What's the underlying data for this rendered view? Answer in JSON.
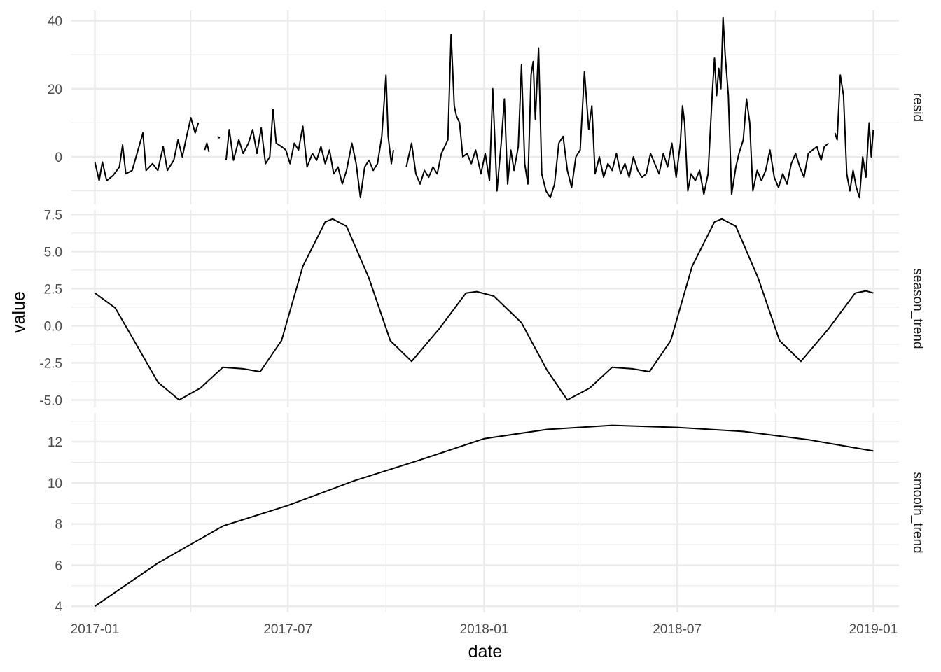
{
  "chart_data": {
    "type": "line",
    "title": "",
    "xlabel": "date",
    "ylabel": "value",
    "grid": true,
    "x_ticks": [
      "2017-01",
      "2017-07",
      "2018-01",
      "2018-07",
      "2019-01"
    ],
    "x_minor_ticks": [
      "2017-04",
      "2017-10",
      "2018-04",
      "2018-10"
    ],
    "xlim": [
      "2016-12-10",
      "2019-01-25"
    ],
    "line_color": "#000000",
    "gridline_color": "#ebebeb",
    "panels": [
      {
        "strip": "resid",
        "ylim": [
          -14,
          43
        ],
        "y_ticks": [
          0,
          20,
          40
        ],
        "y_tick_labels": [
          "0",
          "20",
          "40"
        ],
        "y_minor_ticks": [
          -10,
          10,
          30
        ],
        "points": [
          [
            "2017-01-01",
            -1.5
          ],
          [
            "2017-01-05",
            -7
          ],
          [
            "2017-01-08",
            -1.5
          ],
          [
            "2017-01-12",
            -7
          ],
          [
            "2017-01-18",
            -5.5
          ],
          [
            "2017-01-24",
            -3
          ],
          [
            "2017-01-27",
            3.5
          ],
          [
            "2017-01-30",
            -5
          ],
          [
            "2017-02-05",
            -4
          ],
          [
            "2017-02-10",
            1.5
          ],
          [
            "2017-02-15",
            7
          ],
          [
            "2017-02-18",
            -4
          ],
          [
            "2017-02-24",
            -2
          ],
          [
            "2017-03-01",
            -4
          ],
          [
            "2017-03-06",
            3
          ],
          [
            "2017-03-10",
            -4
          ],
          [
            "2017-03-16",
            -1
          ],
          [
            "2017-03-20",
            5
          ],
          [
            "2017-03-24",
            0
          ],
          [
            "2017-03-28",
            6
          ],
          [
            "2017-04-01",
            11.5
          ],
          [
            "2017-04-05",
            7
          ],
          [
            "2017-04-08",
            10
          ],
          null,
          [
            "2017-04-14",
            2
          ],
          [
            "2017-04-16",
            4
          ],
          [
            "2017-04-18",
            1.5
          ],
          null,
          [
            "2017-04-26",
            6
          ],
          [
            "2017-04-28",
            5.5
          ],
          null,
          [
            "2017-05-04",
            -1
          ],
          [
            "2017-05-07",
            8
          ],
          [
            "2017-05-11",
            -1
          ],
          [
            "2017-05-16",
            5
          ],
          [
            "2017-05-20",
            1
          ],
          [
            "2017-05-25",
            4
          ],
          [
            "2017-05-29",
            8
          ],
          [
            "2017-06-02",
            1
          ],
          [
            "2017-06-06",
            8.5
          ],
          [
            "2017-06-10",
            -2
          ],
          [
            "2017-06-14",
            0
          ],
          [
            "2017-06-17",
            14
          ],
          [
            "2017-06-20",
            4
          ],
          [
            "2017-06-25",
            3
          ],
          [
            "2017-06-29",
            2
          ],
          [
            "2017-07-03",
            -2
          ],
          [
            "2017-07-07",
            4
          ],
          [
            "2017-07-11",
            2
          ],
          [
            "2017-07-15",
            9
          ],
          [
            "2017-07-19",
            -3
          ],
          [
            "2017-07-24",
            1
          ],
          [
            "2017-07-28",
            -1
          ],
          [
            "2017-08-01",
            3
          ],
          [
            "2017-08-05",
            -2
          ],
          [
            "2017-08-09",
            2
          ],
          [
            "2017-08-13",
            -5
          ],
          [
            "2017-08-17",
            -3
          ],
          [
            "2017-08-21",
            -8
          ],
          [
            "2017-08-25",
            -4
          ],
          [
            "2017-08-30",
            4
          ],
          [
            "2017-09-03",
            -2
          ],
          [
            "2017-09-07",
            -12
          ],
          [
            "2017-09-11",
            -3
          ],
          [
            "2017-09-15",
            -1
          ],
          [
            "2017-09-19",
            -4
          ],
          [
            "2017-09-23",
            -2
          ],
          [
            "2017-09-27",
            6
          ],
          [
            "2017-10-01",
            24
          ],
          [
            "2017-10-03",
            6
          ],
          [
            "2017-10-06",
            -2
          ],
          [
            "2017-10-08",
            2
          ],
          null,
          [
            "2017-10-20",
            -3
          ],
          [
            "2017-10-25",
            4
          ],
          [
            "2017-10-29",
            -5
          ],
          [
            "2017-11-02",
            -8
          ],
          [
            "2017-11-06",
            -4
          ],
          [
            "2017-11-10",
            -6
          ],
          [
            "2017-11-14",
            -3
          ],
          [
            "2017-11-18",
            -5
          ],
          [
            "2017-11-22",
            1
          ],
          [
            "2017-11-28",
            5
          ],
          [
            "2017-12-01",
            36
          ],
          [
            "2017-12-04",
            15
          ],
          [
            "2017-12-06",
            12
          ],
          [
            "2017-12-09",
            10
          ],
          [
            "2017-12-12",
            0
          ],
          [
            "2017-12-16",
            1
          ],
          [
            "2017-12-20",
            -2
          ],
          [
            "2017-12-24",
            2
          ],
          [
            "2017-12-29",
            -5
          ],
          [
            "2018-01-02",
            1
          ],
          [
            "2018-01-06",
            -7
          ],
          [
            "2018-01-09",
            20
          ],
          [
            "2018-01-13",
            -10
          ],
          [
            "2018-01-17",
            4
          ],
          [
            "2018-01-20",
            17
          ],
          [
            "2018-01-23",
            -8
          ],
          [
            "2018-01-26",
            2
          ],
          [
            "2018-01-29",
            -4
          ],
          [
            "2018-02-02",
            3
          ],
          [
            "2018-02-05",
            27
          ],
          [
            "2018-02-08",
            -2
          ],
          [
            "2018-02-11",
            -8
          ],
          [
            "2018-02-14",
            24
          ],
          [
            "2018-02-16",
            28
          ],
          [
            "2018-02-18",
            11
          ],
          [
            "2018-02-21",
            32
          ],
          [
            "2018-02-24",
            -5
          ],
          [
            "2018-02-28",
            -10
          ],
          [
            "2018-03-04",
            -12
          ],
          [
            "2018-03-08",
            -8
          ],
          [
            "2018-03-12",
            4
          ],
          [
            "2018-03-16",
            6
          ],
          [
            "2018-03-20",
            -4
          ],
          [
            "2018-03-24",
            -9
          ],
          [
            "2018-03-28",
            0
          ],
          [
            "2018-04-01",
            2
          ],
          [
            "2018-04-05",
            25
          ],
          [
            "2018-04-09",
            8
          ],
          [
            "2018-04-12",
            15
          ],
          [
            "2018-04-15",
            -5
          ],
          [
            "2018-04-19",
            0
          ],
          [
            "2018-04-23",
            -6
          ],
          [
            "2018-04-27",
            -2
          ],
          [
            "2018-05-01",
            -4
          ],
          [
            "2018-05-05",
            1
          ],
          [
            "2018-05-09",
            -5
          ],
          [
            "2018-05-13",
            -2
          ],
          [
            "2018-05-17",
            -6
          ],
          [
            "2018-05-21",
            0
          ],
          [
            "2018-05-25",
            -4
          ],
          [
            "2018-05-29",
            -6
          ],
          [
            "2018-06-02",
            -5
          ],
          [
            "2018-06-06",
            1
          ],
          [
            "2018-06-10",
            -2
          ],
          [
            "2018-06-14",
            -5
          ],
          [
            "2018-06-18",
            1
          ],
          [
            "2018-06-22",
            -3
          ],
          [
            "2018-06-26",
            4
          ],
          [
            "2018-06-30",
            -6
          ],
          [
            "2018-07-04",
            4
          ],
          [
            "2018-07-06",
            15
          ],
          [
            "2018-07-08",
            10
          ],
          [
            "2018-07-11",
            -10
          ],
          [
            "2018-07-14",
            -5
          ],
          [
            "2018-07-18",
            -7
          ],
          [
            "2018-07-22",
            -4
          ],
          [
            "2018-07-26",
            -11
          ],
          [
            "2018-07-30",
            -5
          ],
          [
            "2018-08-03",
            19
          ],
          [
            "2018-08-05",
            29
          ],
          [
            "2018-08-07",
            18
          ],
          [
            "2018-08-09",
            26
          ],
          [
            "2018-08-11",
            20
          ],
          [
            "2018-08-13",
            41
          ],
          [
            "2018-08-15",
            30
          ],
          [
            "2018-08-18",
            18
          ],
          [
            "2018-08-21",
            -11
          ],
          [
            "2018-08-25",
            -3
          ],
          [
            "2018-08-28",
            1
          ],
          [
            "2018-09-01",
            5
          ],
          [
            "2018-09-04",
            17
          ],
          [
            "2018-09-07",
            10
          ],
          [
            "2018-09-10",
            -10
          ],
          [
            "2018-09-14",
            -4
          ],
          [
            "2018-09-18",
            -7
          ],
          [
            "2018-09-22",
            -4
          ],
          [
            "2018-09-26",
            2
          ],
          [
            "2018-09-30",
            -6
          ],
          [
            "2018-10-04",
            -9
          ],
          [
            "2018-10-08",
            -5
          ],
          [
            "2018-10-12",
            -8
          ],
          [
            "2018-10-16",
            -2
          ],
          [
            "2018-10-20",
            1
          ],
          [
            "2018-10-24",
            -3
          ],
          [
            "2018-10-28",
            -6
          ],
          [
            "2018-11-01",
            1
          ],
          [
            "2018-11-05",
            2
          ],
          [
            "2018-11-09",
            3
          ],
          [
            "2018-11-13",
            -1
          ],
          [
            "2018-11-16",
            3
          ],
          [
            "2018-11-20",
            4
          ],
          null,
          [
            "2018-11-26",
            7
          ],
          [
            "2018-11-28",
            5
          ],
          [
            "2018-12-01",
            24
          ],
          [
            "2018-12-04",
            18
          ],
          [
            "2018-12-07",
            -5
          ],
          [
            "2018-12-10",
            -10
          ],
          [
            "2018-12-13",
            -4
          ],
          [
            "2018-12-16",
            -9
          ],
          [
            "2018-12-19",
            -12
          ],
          [
            "2018-12-22",
            0
          ],
          [
            "2018-12-25",
            -6
          ],
          [
            "2018-12-28",
            10
          ],
          [
            "2018-12-30",
            0
          ],
          [
            "2019-01-01",
            8
          ]
        ]
      },
      {
        "strip": "season_trend",
        "ylim": [
          -5.5,
          7.8
        ],
        "y_ticks": [
          7.5,
          5.0,
          2.5,
          0.0,
          -2.5,
          -5.0
        ],
        "y_tick_labels": [
          "7.5",
          "5.0",
          "2.5",
          "0.0",
          "-2.5",
          "-5.0"
        ],
        "y_minor_ticks": [
          6.25,
          3.75,
          1.25,
          -1.25,
          -3.75
        ],
        "points": [
          [
            "2017-01-01",
            2.2
          ],
          [
            "2017-01-20",
            1.2
          ],
          [
            "2017-02-10",
            -1.4
          ],
          [
            "2017-03-01",
            -3.8
          ],
          [
            "2017-03-21",
            -5.0
          ],
          [
            "2017-04-10",
            -4.2
          ],
          [
            "2017-05-01",
            -2.8
          ],
          [
            "2017-05-20",
            -2.9
          ],
          [
            "2017-06-05",
            -3.1
          ],
          [
            "2017-06-25",
            -1.0
          ],
          [
            "2017-07-15",
            4.0
          ],
          [
            "2017-08-05",
            7.0
          ],
          [
            "2017-08-12",
            7.2
          ],
          [
            "2017-08-25",
            6.7
          ],
          [
            "2017-09-15",
            3.2
          ],
          [
            "2017-10-05",
            -1.0
          ],
          [
            "2017-10-25",
            -2.4
          ],
          [
            "2017-11-20",
            -0.2
          ],
          [
            "2017-12-15",
            2.2
          ],
          [
            "2017-12-25",
            2.3
          ],
          [
            "2018-01-10",
            2.0
          ],
          [
            "2018-02-05",
            0.2
          ],
          [
            "2018-03-01",
            -3.0
          ],
          [
            "2018-03-20",
            -5.0
          ],
          [
            "2018-04-10",
            -4.2
          ],
          [
            "2018-05-01",
            -2.8
          ],
          [
            "2018-05-20",
            -2.9
          ],
          [
            "2018-06-05",
            -3.1
          ],
          [
            "2018-06-25",
            -1.0
          ],
          [
            "2018-07-15",
            4.0
          ],
          [
            "2018-08-05",
            7.0
          ],
          [
            "2018-08-12",
            7.2
          ],
          [
            "2018-08-25",
            6.7
          ],
          [
            "2018-09-15",
            3.2
          ],
          [
            "2018-10-05",
            -1.0
          ],
          [
            "2018-10-25",
            -2.4
          ],
          [
            "2018-11-20",
            -0.2
          ],
          [
            "2018-12-15",
            2.2
          ],
          [
            "2018-12-25",
            2.35
          ],
          [
            "2019-01-01",
            2.2
          ]
        ]
      },
      {
        "strip": "smooth_trend",
        "ylim": [
          3.7,
          13.4
        ],
        "y_ticks": [
          12,
          10,
          8,
          6,
          4
        ],
        "y_tick_labels": [
          "12",
          "10",
          "8",
          "6",
          "4"
        ],
        "y_minor_ticks": [
          13,
          11,
          9,
          7,
          5
        ],
        "points": [
          [
            "2017-01-01",
            4.0
          ],
          [
            "2017-03-01",
            6.1
          ],
          [
            "2017-05-01",
            7.9
          ],
          [
            "2017-07-01",
            8.9
          ],
          [
            "2017-09-01",
            10.1
          ],
          [
            "2017-11-01",
            11.1
          ],
          [
            "2018-01-01",
            12.15
          ],
          [
            "2018-03-01",
            12.6
          ],
          [
            "2018-05-01",
            12.8
          ],
          [
            "2018-07-01",
            12.7
          ],
          [
            "2018-09-01",
            12.5
          ],
          [
            "2018-11-01",
            12.1
          ],
          [
            "2019-01-01",
            11.55
          ]
        ]
      }
    ]
  }
}
